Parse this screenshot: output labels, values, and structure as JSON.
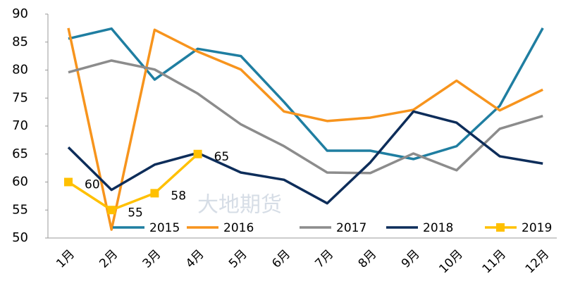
{
  "chart_data": {
    "type": "line",
    "categories": [
      "1月",
      "2月",
      "3月",
      "4月",
      "5月",
      "6月",
      "7月",
      "8月",
      "9月",
      "10月",
      "11月",
      "12月"
    ],
    "series": [
      {
        "name": "2015",
        "color": "#1f7ea1",
        "values": [
          85.6,
          87.4,
          78.3,
          83.8,
          82.5,
          74.3,
          65.6,
          65.6,
          64.1,
          66.4,
          73.6,
          87.5
        ]
      },
      {
        "name": "2016",
        "color": "#f7941d",
        "values": [
          87.5,
          51.5,
          87.2,
          83.3,
          80.1,
          72.6,
          70.9,
          71.5,
          72.9,
          78.1,
          72.8,
          76.5
        ]
      },
      {
        "name": "2017",
        "color": "#8c8c8c",
        "values": [
          79.6,
          81.7,
          80.1,
          75.8,
          70.3,
          66.4,
          61.7,
          61.6,
          65.1,
          62.1,
          69.5,
          71.8
        ]
      },
      {
        "name": "2018",
        "color": "#0d2d5a",
        "values": [
          66.2,
          58.6,
          63.1,
          65.2,
          61.7,
          60.4,
          56.2,
          63.5,
          72.6,
          70.6,
          64.6,
          63.3
        ]
      },
      {
        "name": "2019",
        "color": "#ffc000",
        "marker": "square",
        "data_labels": true,
        "values": [
          60,
          55,
          58,
          65,
          null,
          null,
          null,
          null,
          null,
          null,
          null,
          null
        ]
      }
    ],
    "ylim": [
      50,
      90
    ],
    "yticks": [
      50,
      55,
      60,
      65,
      70,
      75,
      80,
      85,
      90
    ],
    "legend": "bottom",
    "watermark": "大地期货"
  }
}
